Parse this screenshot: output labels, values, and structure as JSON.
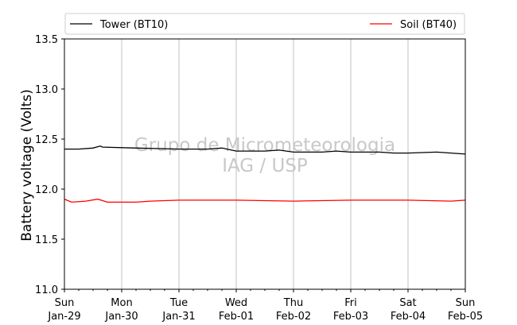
{
  "chart_data": {
    "type": "line",
    "ylabel": "Battery voltage (Volts)",
    "ylim": [
      11.0,
      13.5
    ],
    "yticks": [
      "11.0",
      "11.5",
      "12.0",
      "12.5",
      "13.0",
      "13.5"
    ],
    "xlim": [
      "2017-01-29",
      "2017-02-05"
    ],
    "xticks": [
      {
        "day": "Sun",
        "date": "Jan-29"
      },
      {
        "day": "Mon",
        "date": "Jan-30"
      },
      {
        "day": "Tue",
        "date": "Jan-31"
      },
      {
        "day": "Wed",
        "date": "Feb-01"
      },
      {
        "day": "Thu",
        "date": "Feb-02"
      },
      {
        "day": "Fri",
        "date": "Feb-03"
      },
      {
        "day": "Sat",
        "date": "Feb-04"
      },
      {
        "day": "Sun",
        "date": "Feb-05"
      }
    ],
    "grid": "vertical",
    "legend_placement": "top",
    "watermark": [
      "Grupo de Micrometeorologia",
      "IAG / USP"
    ],
    "series": [
      {
        "name": "Tower (BT10)",
        "color": "#000000",
        "points": [
          [
            "2017-01-29 00:00",
            12.4
          ],
          [
            "2017-01-29 06:00",
            12.4
          ],
          [
            "2017-01-29 12:00",
            12.41
          ],
          [
            "2017-01-29 15:00",
            12.43
          ],
          [
            "2017-01-29 16:00",
            12.42
          ],
          [
            "2017-01-30 06:00",
            12.41
          ],
          [
            "2017-01-31 00:00",
            12.4
          ],
          [
            "2017-01-31 12:00",
            12.4
          ],
          [
            "2017-01-31 18:00",
            12.41
          ],
          [
            "2017-02-01 00:00",
            12.38
          ],
          [
            "2017-02-01 12:00",
            12.38
          ],
          [
            "2017-02-01 18:00",
            12.39
          ],
          [
            "2017-02-02 00:00",
            12.37
          ],
          [
            "2017-02-02 12:00",
            12.37
          ],
          [
            "2017-02-02 18:00",
            12.38
          ],
          [
            "2017-02-03 00:00",
            12.37
          ],
          [
            "2017-02-03 12:00",
            12.37
          ],
          [
            "2017-02-03 18:00",
            12.36
          ],
          [
            "2017-02-04 00:00",
            12.36
          ],
          [
            "2017-02-04 12:00",
            12.37
          ],
          [
            "2017-02-04 18:00",
            12.36
          ],
          [
            "2017-02-05 00:00",
            12.35
          ]
        ]
      },
      {
        "name": "Soil (BT40)",
        "color": "#ff0000",
        "points": [
          [
            "2017-01-29 00:00",
            11.9
          ],
          [
            "2017-01-29 03:00",
            11.87
          ],
          [
            "2017-01-29 09:00",
            11.88
          ],
          [
            "2017-01-29 14:00",
            11.9
          ],
          [
            "2017-01-29 18:00",
            11.87
          ],
          [
            "2017-01-30 06:00",
            11.87
          ],
          [
            "2017-01-30 12:00",
            11.88
          ],
          [
            "2017-01-31 00:00",
            11.89
          ],
          [
            "2017-02-01 00:00",
            11.89
          ],
          [
            "2017-02-02 00:00",
            11.88
          ],
          [
            "2017-02-03 00:00",
            11.89
          ],
          [
            "2017-02-04 00:00",
            11.89
          ],
          [
            "2017-02-04 18:00",
            11.88
          ],
          [
            "2017-02-05 00:00",
            11.89
          ]
        ]
      }
    ]
  }
}
